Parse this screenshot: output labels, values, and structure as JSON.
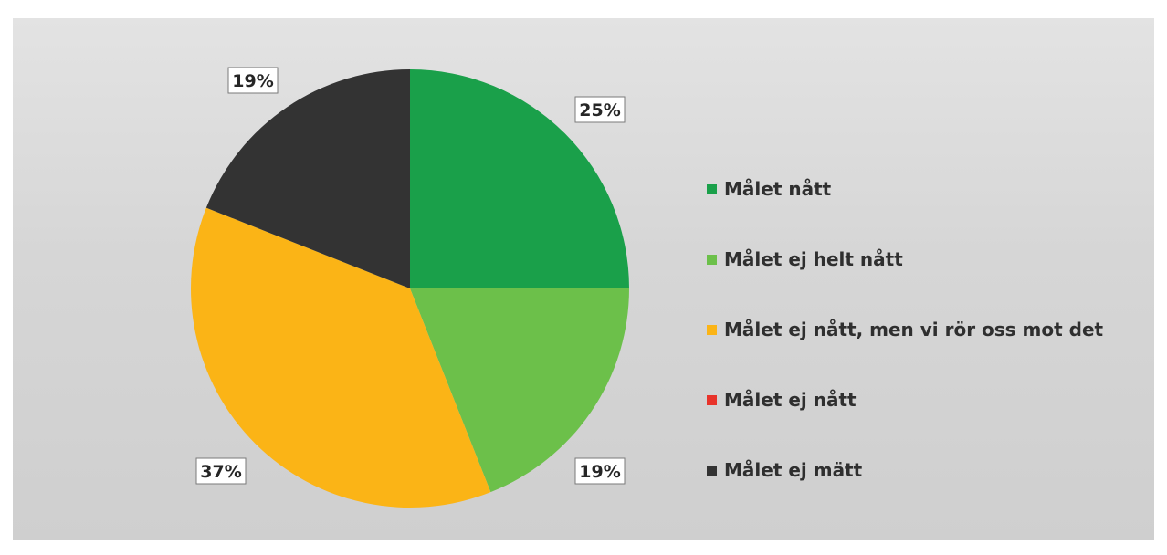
{
  "chart_data": {
    "type": "pie",
    "categories": [
      "Målet nått",
      "Målet ej helt nått",
      "Målet ej nått, men vi rör oss mot det",
      "Målet ej nått",
      "Målet ej mätt"
    ],
    "values": [
      25,
      19,
      37,
      0,
      19
    ],
    "data_labels": [
      "25%",
      "19%",
      "37%",
      "",
      "19%"
    ],
    "colors": [
      "#1aa04a",
      "#6cc04a",
      "#fbb416",
      "#e8332a",
      "#333333"
    ],
    "legend_position": "right",
    "title": ""
  }
}
